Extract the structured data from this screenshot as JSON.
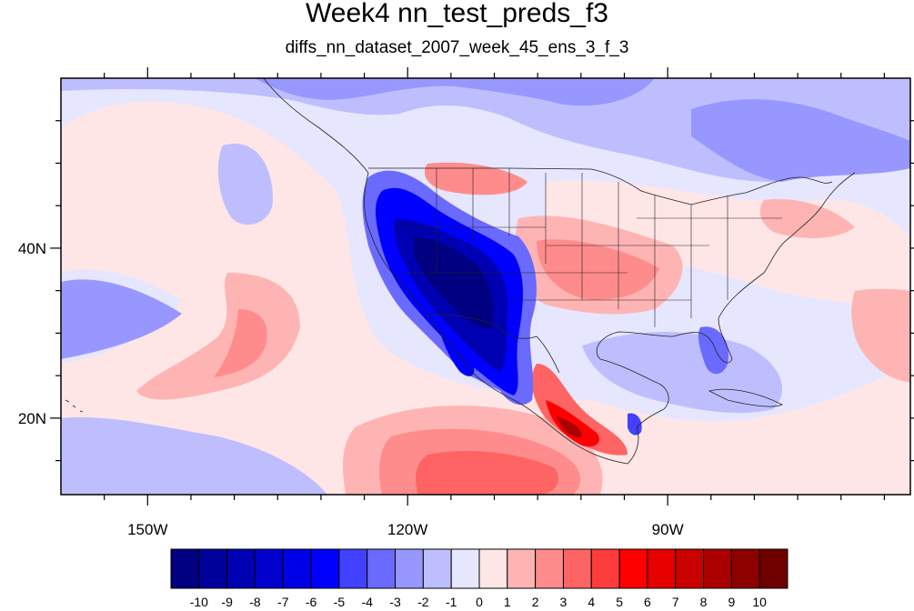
{
  "title": "Week4 nn_test_preds_f3",
  "subtitle": "diffs_nn_dataset_2007_week_45_ens_3_f_3",
  "map": {
    "lon_range": [
      -160,
      -62
    ],
    "lat_range": [
      11,
      60
    ],
    "lat_labels": [
      {
        "lat": 40,
        "label": "40N"
      },
      {
        "lat": 20,
        "label": "20N"
      }
    ],
    "lon_labels": [
      {
        "lon": -150,
        "label": "150W"
      },
      {
        "lon": -120,
        "label": "120W"
      },
      {
        "lon": -90,
        "label": "90W"
      }
    ],
    "minor_lat": [
      15,
      25,
      30,
      35,
      45,
      50,
      55
    ],
    "minor_lon": [
      -155,
      -145,
      -140,
      -135,
      -130,
      -125,
      -115,
      -110,
      -105,
      -100,
      -95,
      -85,
      -80,
      -75,
      -70,
      -65
    ]
  },
  "colorbar": {
    "labels": [
      "-10",
      "-9",
      "-8",
      "-7",
      "-6",
      "-5",
      "-4",
      "-3",
      "-2",
      "-1",
      "0",
      "1",
      "2",
      "3",
      "4",
      "5",
      "6",
      "7",
      "8",
      "9",
      "10"
    ],
    "colors": [
      "#000080",
      "#00009a",
      "#0000b3",
      "#0000cd",
      "#0000e6",
      "#0000ff",
      "#4141ff",
      "#6a6aff",
      "#9797ff",
      "#bebeff",
      "#e6e6ff",
      "#ffe6e6",
      "#ffb4b4",
      "#ff8c8c",
      "#ff6464",
      "#ff3c3c",
      "#ff0000",
      "#e60000",
      "#c80000",
      "#aa0000",
      "#8c0000",
      "#6e0000"
    ]
  }
}
